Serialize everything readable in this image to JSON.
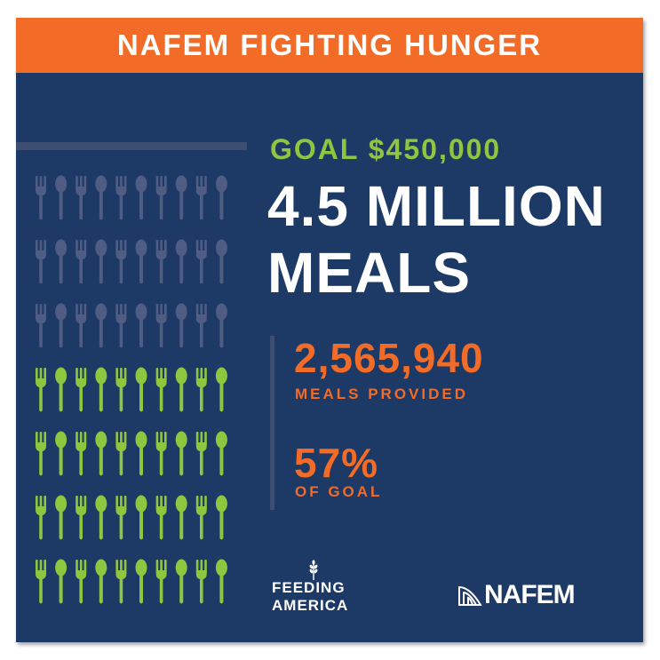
{
  "banner": {
    "title": "NAFEM FIGHTING HUNGER"
  },
  "goal": {
    "label": "GOAL $450,000",
    "headline_line1": "4.5 MILLION",
    "headline_line2": "MEALS"
  },
  "stats": {
    "meals_value": "2,565,940",
    "meals_label": "MEALS PROVIDED",
    "percent_value": "57%",
    "percent_label": "OF GOAL"
  },
  "progress": {
    "filled_icons": 40,
    "total_icons": 70,
    "fraction_shown": 0.57
  },
  "logos": {
    "feeding_america_line1": "FEEDING",
    "feeding_america_line2": "AMERICA",
    "nafem": "NAFEM"
  },
  "colors": {
    "background": "#1d3965",
    "banner": "#f26b27",
    "accent_green": "#8dc63f",
    "accent_orange": "#f26b27",
    "muted_icon": "#4f5c84",
    "text_white": "#ffffff"
  },
  "icons": [
    "fork-icon",
    "spoon-icon",
    "wheat-icon",
    "nafem-logo-icon"
  ]
}
